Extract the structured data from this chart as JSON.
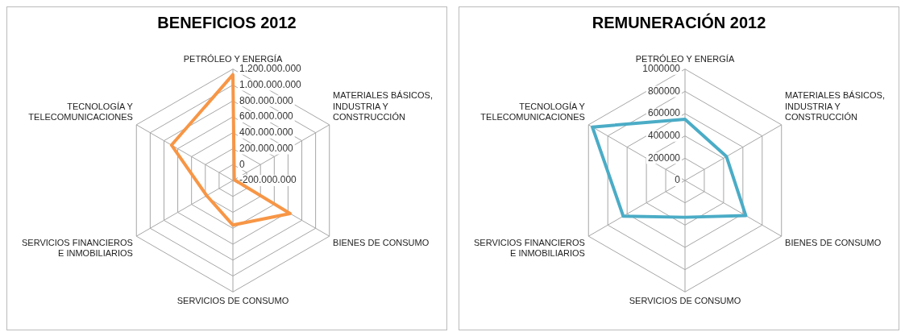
{
  "chart_data": [
    {
      "type": "radar",
      "title": "BENEFICIOS 2012",
      "categories": [
        "PETRÓLEO Y ENERGÍA",
        "MATERIALES BÁSICOS, INDUSTRIA Y CONSTRUCCIÓN",
        "BIENES DE CONSUMO",
        "SERVICIOS DE CONSUMO",
        "SERVICIOS FINANCIEROS E INMOBILIARIOS",
        "TECNOLOGÍA Y TELECOMUNICACIONES"
      ],
      "series": [
        {
          "color": "#f79646",
          "values": [
            1130000000,
            -180000000,
            630000000,
            360000000,
            180000000,
            690000000
          ]
        }
      ],
      "ylim": [
        -200000000,
        1200000000
      ],
      "yticks": [
        {
          "value": -200000000,
          "label": "-200.000.000"
        },
        0,
        {
          "value": 200000000,
          "label": "200.000.000"
        },
        {
          "value": 400000000,
          "label": "400.000.000"
        },
        {
          "value": 600000000,
          "label": "600.000.000"
        },
        {
          "value": 800000000,
          "label": "800.000.000"
        },
        {
          "value": 1000000000,
          "label": "1.000.000.000"
        },
        {
          "value": 1200000000,
          "label": "1.200.000.000"
        }
      ],
      "grid": true,
      "legend": false,
      "marker": "none"
    },
    {
      "type": "radar",
      "title": "REMUNERACIÓN 2012",
      "categories": [
        "PETRÓLEO Y ENERGÍA",
        "MATERIALES BÁSICOS, INDUSTRIA Y CONSTRUCCIÓN",
        "BIENES DE CONSUMO",
        "SERVICIOS DE CONSUMO",
        "SERVICIOS FINANCIEROS E INMOBILIARIOS",
        "TECNOLOGÍA Y TELECOMUNICACIONES"
      ],
      "series": [
        {
          "color": "#4bacc6",
          "values": [
            550000,
            430000,
            630000,
            330000,
            640000,
            960000
          ]
        }
      ],
      "ylim": [
        0,
        1000000
      ],
      "yticks": [
        0,
        200000,
        400000,
        600000,
        800000,
        1000000
      ],
      "grid": true,
      "legend": false,
      "marker": "none"
    }
  ]
}
